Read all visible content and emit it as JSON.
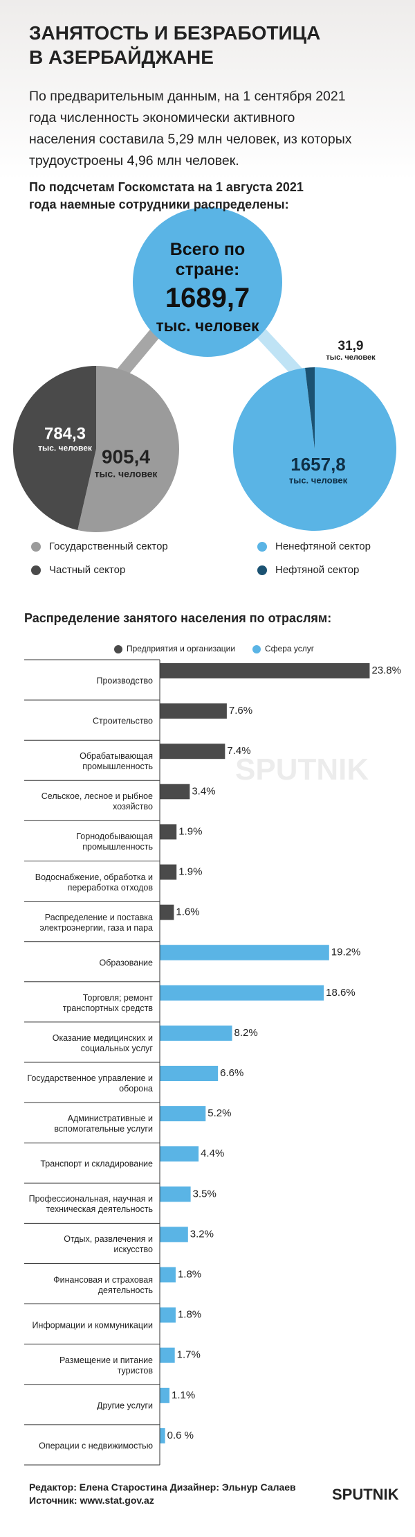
{
  "header": {
    "title": "ЗАНЯТОСТЬ И БЕЗРАБОТИЦА\nВ АЗЕРБАЙДЖАНЕ",
    "intro": "По предварительным данным, на 1 сентября 2021\nгода численность экономически активного\nнаселения составила 5,29 млн человек, из которых\nтрудоустроены 4,96 млн человек.",
    "subtitle": "По подсчетам Госкомстата на 1 августа 2021\nгода наемные сотрудники распределены:"
  },
  "total": {
    "label": "Всего по\nстране:",
    "value": "1689,7",
    "unit": "тыс. человек"
  },
  "chart_data": [
    {
      "type": "pie",
      "categories": [
        "Государственный сектор",
        "Частный сектор"
      ],
      "values": [
        905.4,
        784.3
      ],
      "value_labels": [
        "905,4",
        "784,3"
      ],
      "unit": "тыс. человек",
      "colors": [
        "#9b9b9b",
        "#4a4a4a"
      ]
    },
    {
      "type": "pie",
      "categories": [
        "Ненефтяной сектор",
        "Нефтяной сектор"
      ],
      "values": [
        1657.8,
        31.9
      ],
      "value_labels": [
        "1657,8",
        "31,9"
      ],
      "unit": "тыс. человек",
      "colors": [
        "#5ab4e5",
        "#1b5272"
      ]
    },
    {
      "type": "bar",
      "orientation": "horizontal",
      "title": "Распределение занятого населения по отраслям:",
      "categories": [
        "Производство",
        "Строительство",
        "Обрабатывающая\nпромышленность",
        "Сельское, лесное и рыбное\nхозяйство",
        "Горнодобывающая\nпромышленность",
        "Водоснабжение, обработка и\nпереработка отходов",
        "Распределение и поставка\nэлектроэнергии, газа и пара",
        "Образование",
        "Торговля; ремонт\nтранспортных средств",
        "Оказание медицинских и\nсоциальных услуг",
        "Государственное управление и\nоборона",
        "Административные и\nвспомогательные услуги",
        "Транспорт и складирование",
        "Профессиональная, научная и\nтехническая деятельность",
        "Отдых, развлечения и\nискусство",
        "Финансовая и страховая\nдеятельность",
        "Информации и коммуникации",
        "Размещение и питание\nтуристов",
        "Другие услуги",
        "Операции с недвижимостью"
      ],
      "series": [
        {
          "name": "Предприятия и организации",
          "color": "#4a4a4a",
          "values": [
            23.8,
            7.6,
            7.4,
            3.4,
            1.9,
            1.9,
            1.6,
            null,
            null,
            null,
            null,
            null,
            null,
            null,
            null,
            null,
            null,
            null,
            null,
            null
          ],
          "value_labels": [
            "23.8%",
            "7.6%",
            "7.4%",
            "3.4%",
            "1.9%",
            "1.9%",
            "1.6%",
            null,
            null,
            null,
            null,
            null,
            null,
            null,
            null,
            null,
            null,
            null,
            null,
            null
          ]
        },
        {
          "name": "Сфера услуг",
          "color": "#5ab4e5",
          "values": [
            null,
            null,
            null,
            null,
            null,
            null,
            null,
            19.2,
            18.6,
            8.2,
            6.6,
            5.2,
            4.4,
            3.5,
            3.2,
            1.8,
            1.8,
            1.7,
            1.1,
            0.6
          ],
          "value_labels": [
            null,
            null,
            null,
            null,
            null,
            null,
            null,
            "19.2%",
            "18.6%",
            "8.2%",
            "6.6%",
            "5.2%",
            "4.4%",
            "3.5%",
            "3.2%",
            "1.8%",
            "1.8%",
            "1.7%",
            "1.1%",
            "0.6 %"
          ]
        }
      ]
    }
  ],
  "footer": {
    "credits": "Редактор: Елена Старостина  Дизайнер: Эльнур Салаев",
    "source": "Источник: www.stat.gov.az",
    "logo": "SPUTNIK"
  }
}
